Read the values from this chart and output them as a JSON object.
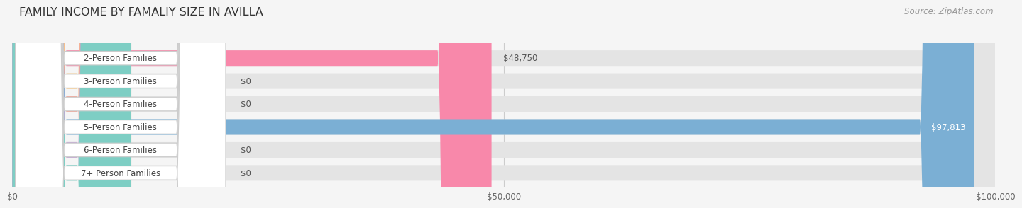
{
  "title": "FAMILY INCOME BY FAMALIY SIZE IN AVILLA",
  "source": "Source: ZipAtlas.com",
  "categories": [
    "2-Person Families",
    "3-Person Families",
    "4-Person Families",
    "5-Person Families",
    "6-Person Families",
    "7+ Person Families"
  ],
  "values": [
    48750,
    0,
    0,
    97813,
    0,
    0
  ],
  "bar_colors": [
    "#f888aa",
    "#f5c98a",
    "#f5a89a",
    "#7bafd4",
    "#c4a8d4",
    "#7ecec4"
  ],
  "value_labels": [
    "$48,750",
    "$0",
    "$0",
    "$97,813",
    "$0",
    "$0"
  ],
  "xlim_max": 100000,
  "xticks": [
    0,
    50000,
    100000
  ],
  "xtick_labels": [
    "$0",
    "$50,000",
    "$100,000"
  ],
  "background_color": "#f5f5f5",
  "bar_bg_color": "#e4e4e4",
  "white_color": "#ffffff",
  "border_color": "#cccccc",
  "title_fontsize": 11.5,
  "label_fontsize": 8.5,
  "value_fontsize": 8.5,
  "source_fontsize": 8.5
}
